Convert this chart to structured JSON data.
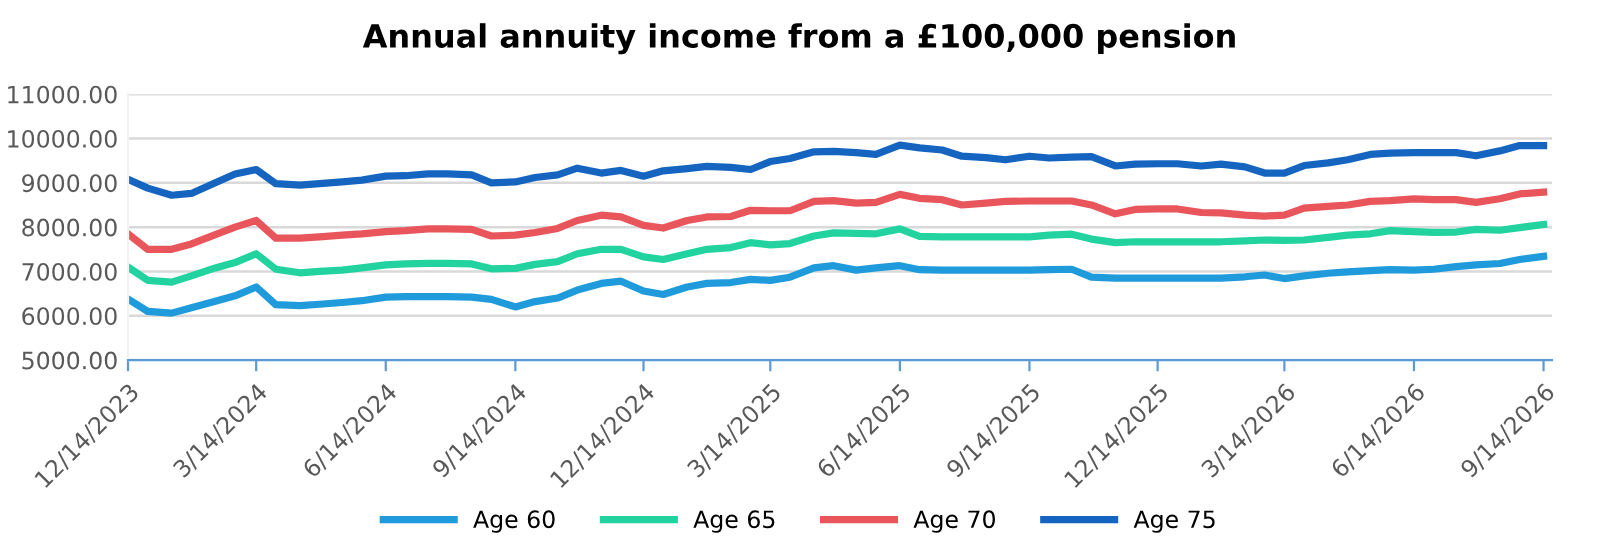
{
  "chart_data": {
    "type": "line",
    "title": "Annual annuity income from a £100,000 pension",
    "x": [
      "2023-12-14",
      "2023-12-28",
      "2024-01-14",
      "2024-01-28",
      "2024-02-14",
      "2024-02-28",
      "2024-03-14",
      "2024-03-28",
      "2024-04-14",
      "2024-04-28",
      "2024-05-14",
      "2024-05-28",
      "2024-06-14",
      "2024-06-28",
      "2024-07-14",
      "2024-07-28",
      "2024-08-14",
      "2024-08-28",
      "2024-09-14",
      "2024-09-28",
      "2024-10-14",
      "2024-10-28",
      "2024-11-14",
      "2024-11-28",
      "2024-12-14",
      "2024-12-28",
      "2025-01-14",
      "2025-01-28",
      "2025-02-14",
      "2025-02-28",
      "2025-03-14",
      "2025-03-28",
      "2025-04-14",
      "2025-04-28",
      "2025-05-14",
      "2025-05-28",
      "2025-06-14",
      "2025-06-28",
      "2025-07-14",
      "2025-07-28",
      "2025-08-14",
      "2025-08-28",
      "2025-09-14",
      "2025-09-28",
      "2025-10-14",
      "2025-10-28",
      "2025-11-14",
      "2025-11-28",
      "2025-12-14",
      "2025-12-28",
      "2026-01-14",
      "2026-01-28",
      "2026-02-14",
      "2026-02-28",
      "2026-03-14",
      "2026-03-28",
      "2026-04-14",
      "2026-04-28",
      "2026-05-14",
      "2026-05-28",
      "2026-06-14",
      "2026-06-28",
      "2026-07-14",
      "2026-07-28",
      "2026-08-14",
      "2026-08-28",
      "2026-09-14"
    ],
    "series": [
      {
        "name": "Age 60",
        "color": "#1f9bdc",
        "values": [
          6380,
          6100,
          6060,
          6180,
          6330,
          6450,
          6650,
          6250,
          6230,
          6260,
          6300,
          6340,
          6420,
          6430,
          6430,
          6430,
          6420,
          6370,
          6200,
          6320,
          6400,
          6580,
          6730,
          6780,
          6560,
          6480,
          6650,
          6730,
          6750,
          6820,
          6800,
          6870,
          7080,
          7130,
          7030,
          7080,
          7130,
          7040,
          7030,
          7030,
          7030,
          7030,
          7030,
          7040,
          7050,
          6870,
          6850,
          6850,
          6850,
          6850,
          6850,
          6850,
          6880,
          6920,
          6840,
          6900,
          6960,
          6990,
          7020,
          7040,
          7030,
          7050,
          7110,
          7150,
          7180,
          7270,
          7340
        ]
      },
      {
        "name": "Age 65",
        "color": "#22d3a0",
        "values": [
          7100,
          6800,
          6760,
          6900,
          7080,
          7200,
          7400,
          7050,
          6970,
          7000,
          7030,
          7080,
          7150,
          7170,
          7180,
          7180,
          7170,
          7060,
          7070,
          7160,
          7220,
          7400,
          7500,
          7500,
          7330,
          7270,
          7400,
          7500,
          7540,
          7650,
          7600,
          7630,
          7800,
          7870,
          7860,
          7850,
          7960,
          7790,
          7780,
          7780,
          7780,
          7780,
          7780,
          7820,
          7840,
          7730,
          7650,
          7670,
          7670,
          7670,
          7670,
          7670,
          7690,
          7710,
          7700,
          7710,
          7770,
          7820,
          7850,
          7920,
          7900,
          7880,
          7890,
          7950,
          7930,
          7990,
          8060
        ]
      },
      {
        "name": "Age 70",
        "color": "#e8565c",
        "values": [
          7850,
          7500,
          7500,
          7620,
          7830,
          8000,
          8150,
          7750,
          7750,
          7780,
          7820,
          7850,
          7900,
          7920,
          7960,
          7960,
          7950,
          7800,
          7820,
          7880,
          7970,
          8150,
          8270,
          8230,
          8040,
          7980,
          8150,
          8230,
          8240,
          8380,
          8370,
          8370,
          8580,
          8600,
          8540,
          8560,
          8740,
          8650,
          8620,
          8500,
          8540,
          8580,
          8590,
          8590,
          8590,
          8500,
          8300,
          8400,
          8410,
          8410,
          8330,
          8320,
          8270,
          8250,
          8270,
          8430,
          8470,
          8500,
          8580,
          8600,
          8640,
          8620,
          8620,
          8560,
          8640,
          8750,
          8790
        ]
      },
      {
        "name": "Age 75",
        "color": "#1565c0",
        "values": [
          9080,
          8880,
          8720,
          8760,
          9000,
          9200,
          9300,
          8980,
          8950,
          8980,
          9020,
          9060,
          9150,
          9160,
          9200,
          9200,
          9180,
          9000,
          9020,
          9120,
          9180,
          9330,
          9220,
          9280,
          9150,
          9270,
          9320,
          9370,
          9350,
          9300,
          9480,
          9550,
          9700,
          9710,
          9680,
          9640,
          9850,
          9790,
          9740,
          9600,
          9570,
          9520,
          9600,
          9560,
          9580,
          9590,
          9380,
          9420,
          9430,
          9430,
          9380,
          9420,
          9360,
          9220,
          9220,
          9390,
          9450,
          9520,
          9640,
          9670,
          9680,
          9680,
          9680,
          9610,
          9720,
          9840,
          9840
        ]
      }
    ],
    "xlim": [
      "2023-12-14",
      "2026-09-20"
    ],
    "xticks": [
      {
        "value": "2023-12-14",
        "label": "12/14/2023"
      },
      {
        "value": "2024-03-14",
        "label": "3/14/2024"
      },
      {
        "value": "2024-06-14",
        "label": "6/14/2024"
      },
      {
        "value": "2024-09-14",
        "label": "9/14/2024"
      },
      {
        "value": "2024-12-14",
        "label": "12/14/2024"
      },
      {
        "value": "2025-03-14",
        "label": "3/14/2025"
      },
      {
        "value": "2025-06-14",
        "label": "6/14/2025"
      },
      {
        "value": "2025-09-14",
        "label": "9/14/2025"
      },
      {
        "value": "2025-12-14",
        "label": "12/14/2025"
      },
      {
        "value": "2026-03-14",
        "label": "3/14/2026"
      },
      {
        "value": "2026-06-14",
        "label": "6/14/2026"
      },
      {
        "value": "2026-09-14",
        "label": "9/14/2026"
      }
    ],
    "ylim": [
      5000,
      11000
    ],
    "yticks": [
      {
        "value": 5000,
        "label": "5000.00"
      },
      {
        "value": 6000,
        "label": "6000.00"
      },
      {
        "value": 7000,
        "label": "7000.00"
      },
      {
        "value": 8000,
        "label": "8000.00"
      },
      {
        "value": 9000,
        "label": "9000.00"
      },
      {
        "value": 10000,
        "label": "10000.00"
      },
      {
        "value": 11000,
        "label": "11000.00"
      }
    ],
    "grid": "y",
    "legend": "bottom",
    "marker": "none",
    "line_style": "solid"
  }
}
